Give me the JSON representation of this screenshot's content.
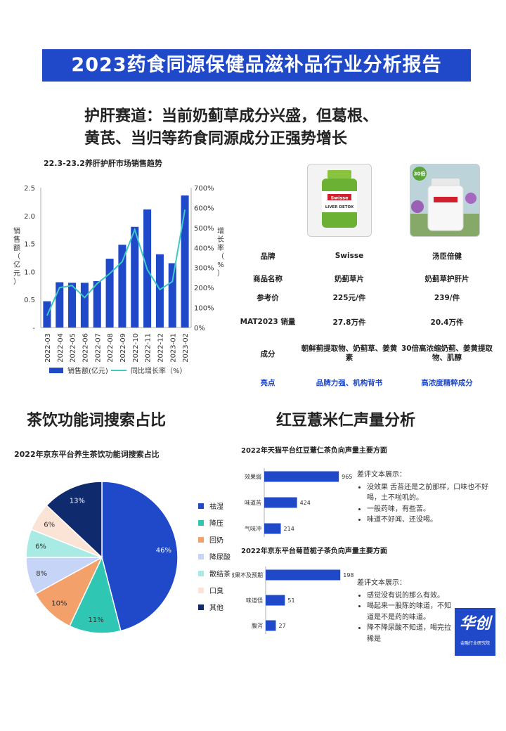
{
  "banner": {
    "title": "2023药食同源保健品滋补品行业分析报告",
    "bg": "#1f49c9"
  },
  "subtitle": {
    "line1": "护肝赛道：当前奶蓟草成分兴盛，但葛根、",
    "line2": "黄芪、当归等药食同源成分正强势增长"
  },
  "sections": {
    "tea": "茶饮功能词搜索占比",
    "bean": "红豆薏米仁声量分析"
  },
  "products": {
    "swisse_label_top": "Swisse",
    "swisse_label_bottom": "LIVER DETOX",
    "tangchen_badge": "30倍",
    "rows": [
      {
        "label": "品牌",
        "a": "Swisse",
        "b": "汤臣倍健"
      },
      {
        "label": "商品名称",
        "a": "奶蓟草片",
        "b": "奶蓟草护肝片"
      },
      {
        "label": "参考价",
        "a": "225元/件",
        "b": "239/件"
      },
      {
        "label": "MAT2023 销量",
        "a": "27.8万件",
        "b": "20.4万件"
      },
      {
        "label": "成分",
        "a": "朝鲜蓟提取物、奶蓟草、姜黄素",
        "b": "30倍高浓缩奶蓟、姜黄提取物、肌醇"
      },
      {
        "label": "亮点",
        "a": "品牌力强、机构背书",
        "b": "高浓度精粹成分"
      }
    ]
  },
  "chart_data": [
    {
      "type": "bar",
      "title": "22.3-23.2养肝护肝市场销售趋势",
      "categories": [
        "2022-03",
        "2022-04",
        "2022-05",
        "2022-06",
        "2022-07",
        "2022-08",
        "2022-09",
        "2022-10",
        "2022-11",
        "2022-12",
        "2023-01",
        "2023-02"
      ],
      "series": [
        {
          "name": "销售额(亿元)",
          "type": "bar",
          "axis": "left",
          "color": "#1f49c9",
          "values": [
            0.47,
            0.81,
            0.8,
            0.8,
            0.83,
            1.23,
            1.48,
            1.8,
            2.11,
            1.31,
            1.15,
            2.36
          ]
        },
        {
          "name": "同比增长率（%）",
          "type": "line",
          "axis": "right",
          "color": "#3ec9c2",
          "values": [
            60,
            200,
            210,
            150,
            220,
            270,
            330,
            490,
            290,
            190,
            230,
            590
          ]
        }
      ],
      "ylabel": "销售额（亿元）",
      "ylabel_right": "增长率（%）",
      "ylim": [
        0,
        2.5
      ],
      "yticks": [
        "-",
        "0.5",
        "1.0",
        "1.5",
        "2.0",
        "2.5"
      ],
      "ylim_right": [
        0,
        700
      ],
      "yticks_right": [
        "0%",
        "100%",
        "200%",
        "300%",
        "400%",
        "500%",
        "600%",
        "700%"
      ]
    },
    {
      "type": "pie",
      "title": "2022年京东平台养生茶饮功能词搜索占比",
      "labels": [
        "祛湿",
        "降压",
        "回奶",
        "降尿酸",
        "散结茶",
        "口臭",
        "其他"
      ],
      "values": [
        46,
        11,
        10,
        8,
        6,
        6,
        13
      ],
      "value_labels": [
        "46%",
        "11%",
        "10%",
        "8%",
        "6%",
        "6%",
        "13%"
      ],
      "colors": [
        "#1f49c9",
        "#2fc7b3",
        "#f4a06b",
        "#c5d4f7",
        "#a8ebe4",
        "#fbe3d6",
        "#102a6e"
      ],
      "legend": "right"
    },
    {
      "type": "bar",
      "orientation": "horizontal",
      "title": "2022年天猫平台红豆薏仁茶负向声量主要方面",
      "categories": [
        "效果弱",
        "味道苦",
        "气味冲"
      ],
      "values": [
        965,
        424,
        214
      ],
      "xlim": [
        0,
        1000
      ],
      "color": "#1f49c9",
      "review_title": "差评文本展示：",
      "reviews": [
        "没效果 舌苔还是之前那样，口味也不好喝，土不啦叽的。",
        "一般药味，有些苦。",
        "味道不好闻、还没喝。"
      ]
    },
    {
      "type": "bar",
      "orientation": "horizontal",
      "title": "2022年京东平台菊苣栀子茶负向声量主要方面",
      "categories": [
        "效果不及预期",
        "味道怪",
        "腹泻"
      ],
      "values": [
        198,
        51,
        27
      ],
      "xlim": [
        0,
        205
      ],
      "color": "#1f49c9",
      "review_title": "差评文本展示：",
      "reviews": [
        "感觉没有说的那么有效。",
        "喝起来一股陈的味道，不知道是不是药的味道。",
        "降不降尿酸不知道，喝完拉稀是"
      ]
    }
  ],
  "badge": {
    "text": "华创",
    "small": "金融行业研究院"
  }
}
